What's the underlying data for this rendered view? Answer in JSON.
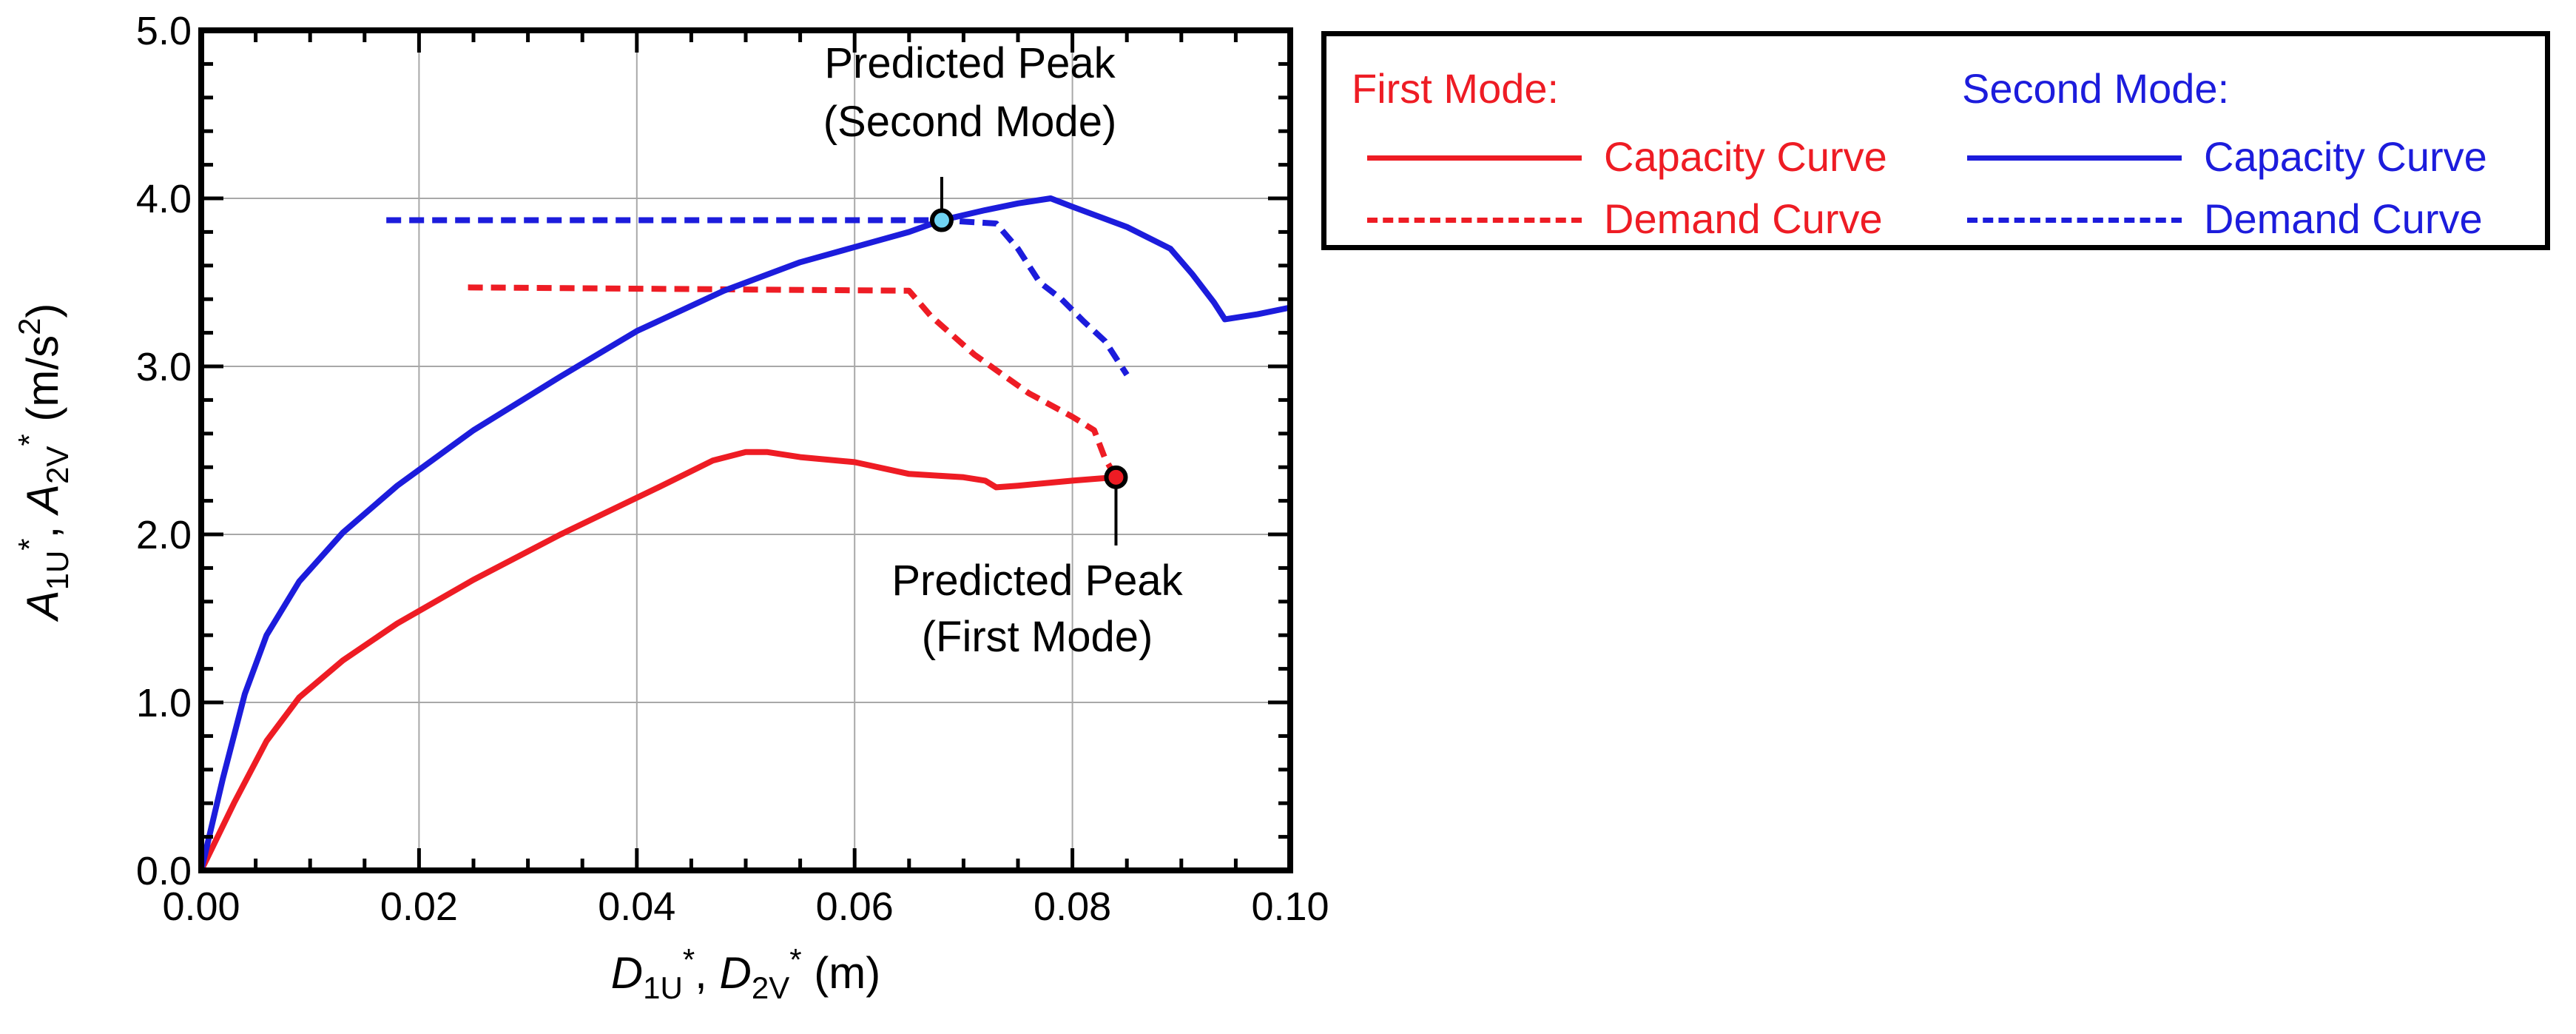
{
  "chart_data": {
    "type": "line",
    "xlabel": {
      "parts": [
        [
          "D",
          "i"
        ],
        [
          "1U",
          "sub"
        ],
        [
          "*",
          "sup"
        ],
        [
          ", ",
          ""
        ],
        [
          "D",
          "i"
        ],
        [
          "2V",
          "sub"
        ],
        [
          "*",
          "sup"
        ],
        [
          " (m)",
          ""
        ]
      ]
    },
    "ylabel": {
      "parts": [
        [
          "A",
          "i"
        ],
        [
          "1U",
          "sub"
        ],
        [
          "*",
          "sup"
        ],
        [
          ", ",
          ""
        ],
        [
          "A",
          "i"
        ],
        [
          "2V",
          "sub"
        ],
        [
          "*",
          "sup"
        ],
        [
          " (m/s",
          ""
        ],
        [
          "2",
          "sup"
        ],
        [
          ")",
          ""
        ]
      ]
    },
    "xlim": [
      0,
      0.1
    ],
    "ylim": [
      0,
      5.0
    ],
    "x_ticks": [
      0,
      0.02,
      0.04,
      0.06,
      0.08,
      0.1
    ],
    "x_tick_labels": [
      "0.00",
      "0.02",
      "0.04",
      "0.06",
      "0.08",
      "0.10"
    ],
    "y_ticks": [
      0,
      1,
      2,
      3,
      4,
      5
    ],
    "y_tick_labels": [
      "0.0",
      "1.0",
      "2.0",
      "3.0",
      "4.0",
      "5.0"
    ],
    "grid": true,
    "series": [
      {
        "name": "First Mode: Capacity Curve",
        "color": "#ee1c24",
        "style": "solid",
        "x": [
          0,
          0.003,
          0.006,
          0.009,
          0.013,
          0.018,
          0.025,
          0.033,
          0.042,
          0.047,
          0.05,
          0.052,
          0.055,
          0.06,
          0.065,
          0.07,
          0.072,
          0.073,
          0.075,
          0.08,
          0.084
        ],
        "y": [
          0,
          0.4,
          0.77,
          1.03,
          1.25,
          1.47,
          1.73,
          2.0,
          2.28,
          2.44,
          2.49,
          2.49,
          2.46,
          2.43,
          2.36,
          2.34,
          2.32,
          2.28,
          2.29,
          2.32,
          2.34
        ]
      },
      {
        "name": "First Mode: Demand Curve",
        "color": "#ee1c24",
        "style": "dashed",
        "x": [
          0.0245,
          0.065,
          0.067,
          0.071,
          0.076,
          0.08,
          0.082,
          0.083,
          0.084
        ],
        "y": [
          3.47,
          3.45,
          3.3,
          3.07,
          2.84,
          2.7,
          2.62,
          2.45,
          2.34
        ]
      },
      {
        "name": "Second Mode: Capacity Curve",
        "color": "#1c1cdc",
        "style": "solid",
        "x": [
          0,
          0.002,
          0.004,
          0.006,
          0.009,
          0.013,
          0.018,
          0.025,
          0.033,
          0.04,
          0.048,
          0.055,
          0.06,
          0.065,
          0.068,
          0.072,
          0.075,
          0.078,
          0.08,
          0.085,
          0.089,
          0.091,
          0.093,
          0.094,
          0.097,
          0.1
        ],
        "y": [
          0,
          0.55,
          1.05,
          1.4,
          1.72,
          2.01,
          2.29,
          2.62,
          2.94,
          3.21,
          3.45,
          3.62,
          3.71,
          3.8,
          3.87,
          3.93,
          3.97,
          4.0,
          3.95,
          3.83,
          3.7,
          3.55,
          3.38,
          3.28,
          3.31,
          3.35
        ]
      },
      {
        "name": "Second Mode: Demand Curve",
        "color": "#1c1cdc",
        "style": "dashed",
        "x": [
          0.017,
          0.068,
          0.073,
          0.075,
          0.077,
          0.079,
          0.081,
          0.083,
          0.085
        ],
        "y": [
          3.87,
          3.87,
          3.85,
          3.7,
          3.5,
          3.4,
          3.27,
          3.15,
          2.95
        ]
      }
    ],
    "annotations": [
      {
        "id": "second",
        "lines": [
          "Predicted Peak",
          "(Second Mode)"
        ],
        "x": 0.068,
        "y": 3.87,
        "marker_fill": "#6fd3f2"
      },
      {
        "id": "first",
        "lines": [
          "Predicted Peak",
          "(First Mode)"
        ],
        "x": 0.084,
        "y": 2.34,
        "marker_fill": "#ee1c24"
      }
    ],
    "legend": {
      "position": "right",
      "groups": [
        {
          "header": "First Mode:",
          "color": "#ee1c24",
          "items": [
            {
              "label": "Capacity Curve",
              "style": "solid"
            },
            {
              "label": "Demand Curve",
              "style": "dashed"
            }
          ]
        },
        {
          "header": "Second Mode:",
          "color": "#1c1cdc",
          "items": [
            {
              "label": "Capacity Curve",
              "style": "solid"
            },
            {
              "label": "Demand Curve",
              "style": "dashed"
            }
          ]
        }
      ]
    }
  }
}
